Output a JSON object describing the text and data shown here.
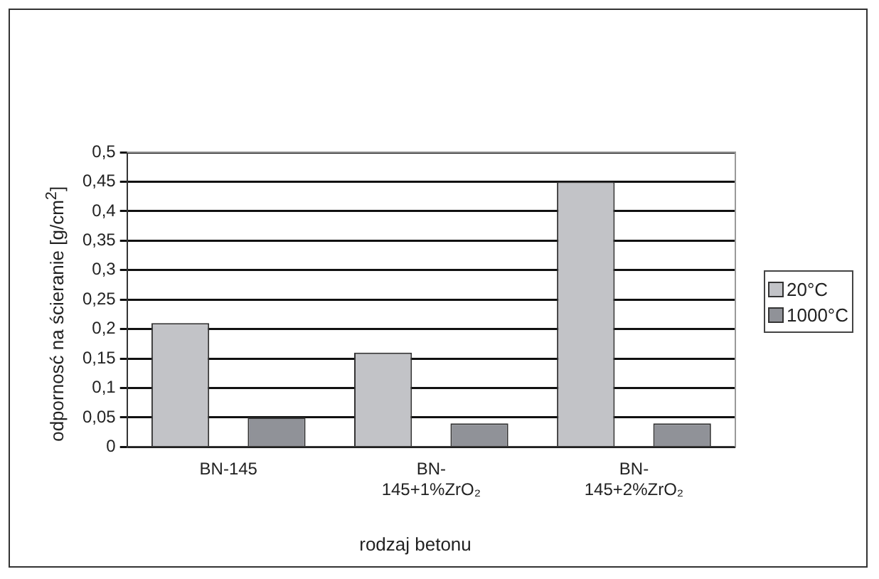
{
  "chart_data": {
    "type": "bar",
    "xlabel": "rodzaj betonu",
    "ylabel": "odpornosć na ścieranie [g/cm$^{2}$]",
    "categories": [
      "BN-145",
      "BN-145+1%ZrO₂",
      "BN-145+2%ZrO₂"
    ],
    "series": [
      {
        "name": "20°C",
        "color": "#c2c3c7",
        "values": [
          0.21,
          0.16,
          0.45
        ]
      },
      {
        "name": "1000°C",
        "color": "#909298",
        "values": [
          0.05,
          0.04,
          0.04
        ]
      }
    ],
    "ylim": [
      0,
      0.5
    ],
    "yticks": [
      {
        "value": 0,
        "label": "0"
      },
      {
        "value": 0.05,
        "label": "0,05"
      },
      {
        "value": 0.1,
        "label": "0,1"
      },
      {
        "value": 0.15,
        "label": "0,15"
      },
      {
        "value": 0.2,
        "label": "0,2"
      },
      {
        "value": 0.25,
        "label": "0,25"
      },
      {
        "value": 0.3,
        "label": "0,3"
      },
      {
        "value": 0.35,
        "label": "0,35"
      },
      {
        "value": 0.4,
        "label": "0,4"
      },
      {
        "value": 0.45,
        "label": "0,45"
      },
      {
        "value": 0.5,
        "label": "0,5"
      }
    ],
    "grid": "y",
    "legend": "right"
  }
}
